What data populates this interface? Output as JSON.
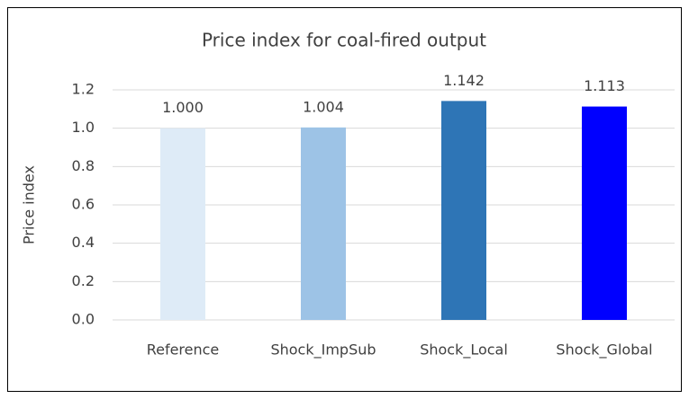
{
  "chart_data": {
    "type": "bar",
    "title": "Price index for coal-fired output",
    "y_label": "Price index",
    "categories": [
      "Reference",
      "Shock_ImpSub",
      "Shock_Local",
      "Shock_Global"
    ],
    "values": [
      1.0,
      1.004,
      1.142,
      1.113
    ],
    "value_labels": [
      "1.000",
      "1.004",
      "1.142",
      "1.113"
    ],
    "colors": [
      "#deebf7",
      "#9dc3e6",
      "#2e75b6",
      "#0000ff"
    ],
    "ylim": [
      0,
      1.2
    ],
    "yticks": [
      {
        "value": 0,
        "label": "0.0"
      },
      {
        "value": 0.2,
        "label": "0.2"
      },
      {
        "value": 0.4,
        "label": "0.4"
      },
      {
        "value": 0.6,
        "label": "0.6"
      },
      {
        "value": 0.8,
        "label": "0.8"
      },
      {
        "value": 1.0,
        "label": "1.0"
      },
      {
        "value": 1.2,
        "label": "1.2"
      }
    ],
    "grid": true
  }
}
